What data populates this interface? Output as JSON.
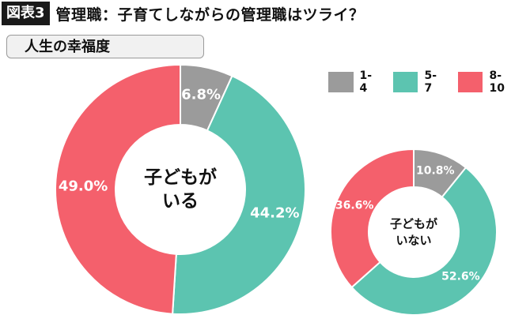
{
  "header": {
    "figure_label": "図表3",
    "title": "管理職：子育てしながらの管理職はツライ？"
  },
  "subtitle": "人生の幸福度",
  "colors": {
    "1-4": "#9b9b9b",
    "5-7": "#5cc4b0",
    "8-10": "#f4606c"
  },
  "chart_data": [
    {
      "type": "pie",
      "title": "子どもがいる",
      "center_lines": [
        "子どもが",
        "いる"
      ],
      "categories": [
        "1-4",
        "5-7",
        "8-10"
      ],
      "values": [
        6.8,
        44.2,
        49.0
      ],
      "labels": [
        "6.8%",
        "44.2%",
        "49.0%"
      ],
      "legend": [
        "1-4",
        "5-7",
        "8-10"
      ],
      "legend_position": "top-right"
    },
    {
      "type": "pie",
      "title": "子どもがいない",
      "center_lines": [
        "子どもが",
        "いない"
      ],
      "categories": [
        "1-4",
        "5-7",
        "8-10"
      ],
      "values": [
        10.8,
        52.6,
        36.6
      ],
      "labels": [
        "10.8%",
        "52.6%",
        "36.6%"
      ],
      "legend": [
        "1-4",
        "5-7",
        "8-10"
      ],
      "legend_position": "top-right"
    }
  ]
}
